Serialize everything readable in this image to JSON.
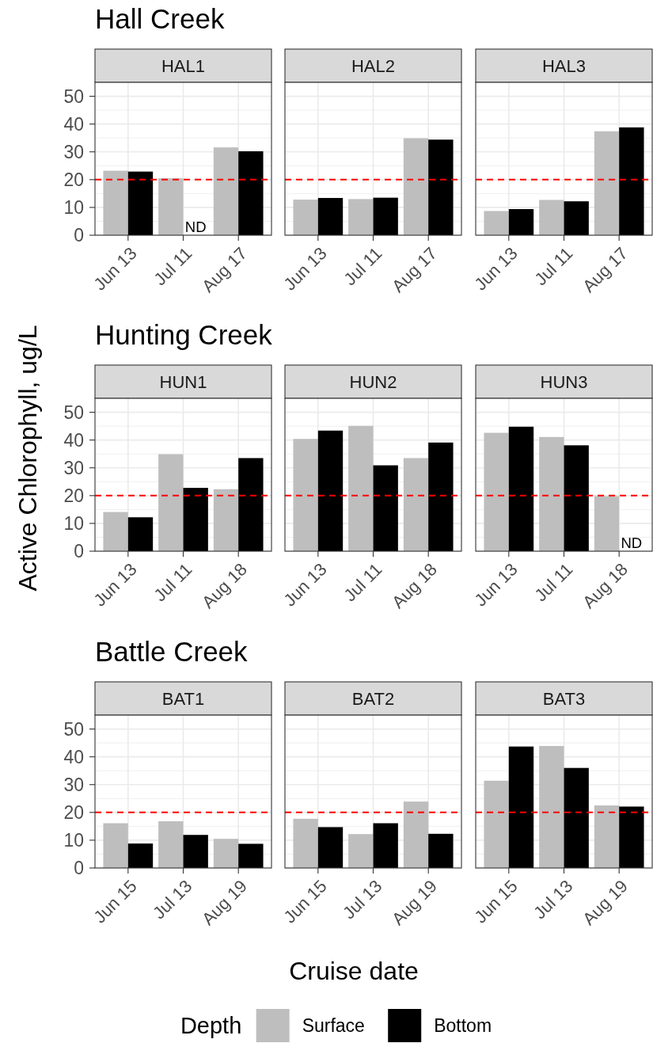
{
  "chart_data": [
    {
      "type": "bar",
      "title": "HAL1",
      "categories": [
        "Jun 13",
        "Jul 11",
        "Aug 17"
      ],
      "series": [
        {
          "color": "#bebebe",
          "values": [
            23.2,
            20.5,
            31.6
          ]
        },
        {
          "color": "#000000",
          "values": [
            22.9,
            null,
            30.2
          ]
        }
      ],
      "ylim": [
        0,
        55
      ],
      "yticks": [
        0,
        10,
        20,
        30,
        40,
        50
      ],
      "grid": true,
      "ref_lines": [
        {
          "axis": "y",
          "value": 20,
          "color": "#ff0000",
          "line_style": "dashed"
        }
      ],
      "annotations": [
        "Hall Creek",
        {
          "text": "ND",
          "x": "Jul 11",
          "y": 3
        }
      ]
    },
    {
      "type": "bar",
      "title": "HAL2",
      "categories": [
        "Jun 13",
        "Jul 11",
        "Aug 17"
      ],
      "series": [
        {
          "color": "#bebebe",
          "values": [
            12.8,
            13.0,
            34.9
          ]
        },
        {
          "color": "#000000",
          "values": [
            13.4,
            13.5,
            34.4
          ]
        }
      ],
      "ylim": [
        0,
        55
      ],
      "yticks": [
        0,
        10,
        20,
        30,
        40,
        50
      ],
      "tick_labels": "x",
      "grid": true,
      "ref_lines": [
        {
          "axis": "y",
          "value": 20,
          "color": "#ff0000",
          "line_style": "dashed"
        }
      ]
    },
    {
      "type": "bar",
      "title": "HAL3",
      "categories": [
        "Jun 13",
        "Jul 11",
        "Aug 17"
      ],
      "series": [
        {
          "color": "#bebebe",
          "values": [
            8.7,
            12.7,
            37.4
          ]
        },
        {
          "color": "#000000",
          "values": [
            9.4,
            12.2,
            38.8
          ]
        }
      ],
      "ylim": [
        0,
        55
      ],
      "yticks": [
        0,
        10,
        20,
        30,
        40,
        50
      ],
      "tick_labels": "x",
      "grid": true,
      "ref_lines": [
        {
          "axis": "y",
          "value": 20,
          "color": "#ff0000",
          "line_style": "dashed"
        }
      ]
    },
    {
      "type": "bar",
      "title": "HUN1",
      "ylabel": "Active Chlorophyll, ug/L",
      "categories": [
        "Jun 13",
        "Jul 11",
        "Aug 18"
      ],
      "series": [
        {
          "color": "#bebebe",
          "values": [
            14.1,
            34.9,
            22.3
          ]
        },
        {
          "color": "#000000",
          "values": [
            12.2,
            22.8,
            33.5
          ]
        }
      ],
      "ylim": [
        0,
        55
      ],
      "yticks": [
        0,
        10,
        20,
        30,
        40,
        50
      ],
      "grid": true,
      "ref_lines": [
        {
          "axis": "y",
          "value": 20,
          "color": "#ff0000",
          "line_style": "dashed"
        }
      ],
      "annotations": [
        "Hunting Creek"
      ]
    },
    {
      "type": "bar",
      "title": "HUN2",
      "categories": [
        "Jun 13",
        "Jul 11",
        "Aug 18"
      ],
      "series": [
        {
          "color": "#bebebe",
          "values": [
            40.4,
            45.1,
            33.5
          ]
        },
        {
          "color": "#000000",
          "values": [
            43.4,
            30.9,
            39.1
          ]
        }
      ],
      "ylim": [
        0,
        55
      ],
      "yticks": [
        0,
        10,
        20,
        30,
        40,
        50
      ],
      "tick_labels": "x",
      "grid": true,
      "ref_lines": [
        {
          "axis": "y",
          "value": 20,
          "color": "#ff0000",
          "line_style": "dashed"
        }
      ]
    },
    {
      "type": "bar",
      "title": "HUN3",
      "categories": [
        "Jun 13",
        "Jul 11",
        "Aug 18"
      ],
      "series": [
        {
          "color": "#bebebe",
          "values": [
            42.6,
            41.1,
            19.8
          ]
        },
        {
          "color": "#000000",
          "values": [
            44.8,
            38.1,
            null
          ]
        }
      ],
      "ylim": [
        0,
        55
      ],
      "yticks": [
        0,
        10,
        20,
        30,
        40,
        50
      ],
      "tick_labels": "x",
      "grid": true,
      "ref_lines": [
        {
          "axis": "y",
          "value": 20,
          "color": "#ff0000",
          "line_style": "dashed"
        }
      ],
      "annotations": [
        {
          "text": "ND",
          "x": "Aug 18",
          "y": 3
        }
      ]
    },
    {
      "type": "bar",
      "title": "BAT1",
      "categories": [
        "Jun 15",
        "Jul 13",
        "Aug 19"
      ],
      "series": [
        {
          "color": "#bebebe",
          "values": [
            16.1,
            16.8,
            10.5
          ]
        },
        {
          "color": "#000000",
          "values": [
            8.8,
            11.9,
            8.7
          ]
        }
      ],
      "ylim": [
        0,
        55
      ],
      "yticks": [
        0,
        10,
        20,
        30,
        40,
        50
      ],
      "grid": true,
      "ref_lines": [
        {
          "axis": "y",
          "value": 20,
          "color": "#ff0000",
          "line_style": "dashed"
        }
      ],
      "annotations": [
        "Battle Creek"
      ]
    },
    {
      "type": "bar",
      "title": "BAT2",
      "xlabel": "Cruise date",
      "legend": "bottom",
      "legend_title": "Depth",
      "categories": [
        "Jun 15",
        "Jul 13",
        "Aug 19"
      ],
      "series": [
        {
          "name": "Surface",
          "color": "#bebebe",
          "values": [
            17.7,
            12.2,
            23.9
          ]
        },
        {
          "name": "Bottom",
          "color": "#000000",
          "values": [
            14.7,
            16.1,
            12.3
          ]
        }
      ],
      "ylim": [
        0,
        55
      ],
      "yticks": [
        0,
        10,
        20,
        30,
        40,
        50
      ],
      "tick_labels": "x",
      "grid": true,
      "ref_lines": [
        {
          "axis": "y",
          "value": 20,
          "color": "#ff0000",
          "line_style": "dashed"
        }
      ]
    },
    {
      "type": "bar",
      "title": "BAT3",
      "categories": [
        "Jun 15",
        "Jul 13",
        "Aug 19"
      ],
      "series": [
        {
          "color": "#bebebe",
          "values": [
            31.4,
            43.9,
            22.5
          ]
        },
        {
          "color": "#000000",
          "values": [
            43.7,
            36.0,
            22.1
          ]
        }
      ],
      "ylim": [
        0,
        55
      ],
      "yticks": [
        0,
        10,
        20,
        30,
        40,
        50
      ],
      "tick_labels": "x",
      "grid": true,
      "ref_lines": [
        {
          "axis": "y",
          "value": 20,
          "color": "#ff0000",
          "line_style": "dashed"
        }
      ]
    }
  ]
}
